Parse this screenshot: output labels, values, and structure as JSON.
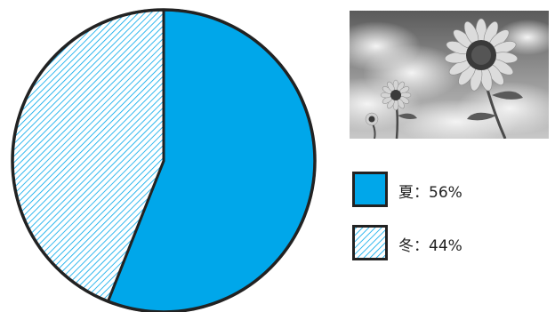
{
  "chart_data": {
    "type": "pie",
    "title": "",
    "start_angle_deg": 0,
    "direction": "clockwise",
    "series": [
      {
        "values": [
          56,
          44
        ],
        "labels": [
          "夏",
          "冬"
        ]
      }
    ],
    "slices": [
      {
        "label": "夏",
        "value": 56,
        "fill": "solid",
        "color": "#00a7ea"
      },
      {
        "label": "冬",
        "value": 44,
        "fill": "hatched",
        "color": "#00a7ea"
      }
    ],
    "legend": {
      "placement": "right",
      "entries": [
        {
          "text": "夏：56%"
        },
        {
          "text": "冬：44%"
        }
      ]
    }
  },
  "photo": {
    "subject": "sunflower-photo",
    "style": "grayscale"
  },
  "colors": {
    "accent": "#00a7ea",
    "outline": "#222222",
    "background": "#ffffff"
  }
}
